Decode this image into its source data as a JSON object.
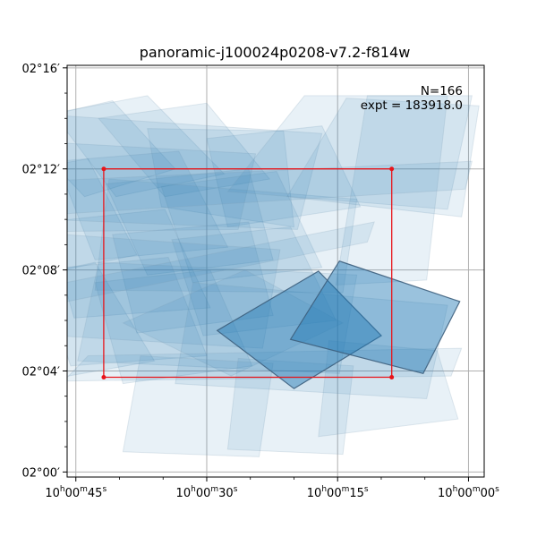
{
  "chart_data": {
    "type": "footprint-map",
    "title": "panoramic-j100024p0208-v7.2-f814w",
    "annotations": [
      "N=166",
      "expt = 183918.0"
    ],
    "x_axis": {
      "quantity": "right ascension",
      "unit": "arcmin of RA",
      "range": [
        11.5,
        -0.45
      ],
      "inverted": true,
      "ticks": [
        {
          "value": 11.25,
          "label": "10h00m45s"
        },
        {
          "value": 7.5,
          "label": "10h00m30s"
        },
        {
          "value": 3.75,
          "label": "10h00m15s"
        },
        {
          "value": 0,
          "label": "10h00m00s"
        }
      ],
      "minor_ticks": [
        13.75,
        12.5,
        10,
        8.75,
        6.25,
        5,
        2.5,
        1.25,
        -1.25
      ]
    },
    "y_axis": {
      "quantity": "declination",
      "unit": "arcmin",
      "range": [
        -0.2,
        16.1
      ],
      "ticks": [
        {
          "value": 0,
          "label": "02°00′"
        },
        {
          "value": 4,
          "label": "02°04′"
        },
        {
          "value": 8,
          "label": "02°08′"
        },
        {
          "value": 12,
          "label": "02°12′"
        },
        {
          "value": 16,
          "label": "02°16′"
        }
      ],
      "minor_ticks": [
        1,
        2,
        3,
        5,
        6,
        7,
        9,
        10,
        11,
        13,
        14,
        15
      ]
    },
    "grid": true,
    "target_box": {
      "color": "#e8141a",
      "corners": [
        [
          10.45,
          12.0
        ],
        [
          2.2,
          12.0
        ],
        [
          2.2,
          3.75
        ],
        [
          10.45,
          3.75
        ]
      ]
    },
    "highlighted_exposures": [
      {
        "corners": [
          [
            7.2,
            5.6
          ],
          [
            4.3,
            7.95
          ],
          [
            2.5,
            5.4
          ],
          [
            5.0,
            3.3
          ]
        ]
      },
      {
        "corners": [
          [
            3.7,
            8.35
          ],
          [
            0.25,
            6.75
          ],
          [
            1.3,
            3.9
          ],
          [
            5.1,
            5.25
          ]
        ]
      }
    ],
    "exposure_footprints": [
      {
        "corners": [
          [
            13.0,
            13.8
          ],
          [
            10.2,
            14.7
          ],
          [
            8.4,
            12.0
          ],
          [
            11.0,
            10.9
          ]
        ]
      },
      {
        "corners": [
          [
            11.9,
            14.2
          ],
          [
            9.2,
            14.9
          ],
          [
            7.0,
            11.8
          ],
          [
            10.1,
            10.9
          ]
        ]
      },
      {
        "corners": [
          [
            10.6,
            14.0
          ],
          [
            7.5,
            14.6
          ],
          [
            5.7,
            11.6
          ],
          [
            8.7,
            10.9
          ]
        ]
      },
      {
        "corners": [
          [
            9.2,
            13.6
          ],
          [
            5.3,
            13.5
          ],
          [
            5.0,
            9.7
          ],
          [
            8.8,
            10.5
          ]
        ]
      },
      {
        "corners": [
          [
            7.5,
            13.2
          ],
          [
            4.2,
            13.7
          ],
          [
            3.1,
            10.5
          ],
          [
            6.9,
            9.7
          ]
        ]
      },
      {
        "corners": [
          [
            13.4,
            11.8
          ],
          [
            10.9,
            12.4
          ],
          [
            9.5,
            8.6
          ],
          [
            12.3,
            7.8
          ]
        ]
      },
      {
        "corners": [
          [
            11.8,
            12.3
          ],
          [
            8.3,
            12.7
          ],
          [
            6.9,
            8.9
          ],
          [
            10.7,
            8.4
          ]
        ]
      },
      {
        "corners": [
          [
            10.4,
            11.4
          ],
          [
            6.3,
            12.0
          ],
          [
            5.6,
            8.4
          ],
          [
            9.2,
            7.8
          ]
        ]
      },
      {
        "corners": [
          [
            8.8,
            11.3
          ],
          [
            5.5,
            11.9
          ],
          [
            4.2,
            8.1
          ],
          [
            7.9,
            7.5
          ]
        ]
      },
      {
        "corners": [
          [
            12.1,
            9.9
          ],
          [
            8.7,
            10.4
          ],
          [
            7.4,
            6.5
          ],
          [
            11.3,
            6.1
          ]
        ]
      },
      {
        "corners": [
          [
            10.2,
            9.4
          ],
          [
            6.3,
            9.9
          ],
          [
            5.6,
            6.2
          ],
          [
            9.5,
            5.5
          ]
        ]
      },
      {
        "corners": [
          [
            8.5,
            9.2
          ],
          [
            5.1,
            9.7
          ],
          [
            3.8,
            6.0
          ],
          [
            7.6,
            5.4
          ]
        ]
      },
      {
        "corners": [
          [
            13.8,
            7.4
          ],
          [
            10.7,
            8.3
          ],
          [
            9.0,
            4.4
          ],
          [
            12.3,
            3.6
          ]
        ]
      },
      {
        "corners": [
          [
            12.3,
            8.0
          ],
          [
            8.6,
            8.5
          ],
          [
            7.5,
            4.6
          ],
          [
            11.4,
            4.2
          ]
        ]
      },
      {
        "corners": [
          [
            10.7,
            7.5
          ],
          [
            7.4,
            8.0
          ],
          [
            6.2,
            4.2
          ],
          [
            9.9,
            3.5
          ]
        ]
      },
      {
        "corners": [
          [
            13.2,
            9.5
          ],
          [
            12.6,
            13.1
          ],
          [
            6.1,
            12.6
          ],
          [
            6.6,
            9.6
          ]
        ]
      },
      {
        "corners": [
          [
            12.2,
            10.0
          ],
          [
            11.6,
            14.1
          ],
          [
            4.2,
            13.4
          ],
          [
            4.9,
            9.6
          ]
        ]
      },
      {
        "corners": [
          [
            10.7,
            7.2
          ],
          [
            10.3,
            11.6
          ],
          [
            3.2,
            10.8
          ],
          [
            3.6,
            7.1
          ]
        ]
      },
      {
        "corners": [
          [
            13.1,
            5.5
          ],
          [
            12.6,
            9.5
          ],
          [
            5.4,
            8.8
          ],
          [
            5.9,
            4.9
          ]
        ]
      },
      {
        "corners": [
          [
            11.2,
            4.4
          ],
          [
            10.6,
            8.3
          ],
          [
            3.2,
            7.8
          ],
          [
            3.7,
            3.9
          ]
        ]
      },
      {
        "corners": [
          [
            8.4,
            3.5
          ],
          [
            7.9,
            7.5
          ],
          [
            0.6,
            6.6
          ],
          [
            1.2,
            2.9
          ]
        ]
      },
      {
        "corners": [
          [
            6.9,
            11.1
          ],
          [
            4.7,
            14.9
          ],
          [
            -0.1,
            14.9
          ],
          [
            0.6,
            10.4
          ]
        ]
      },
      {
        "corners": [
          [
            5.2,
            10.9
          ],
          [
            3.5,
            14.8
          ],
          [
            -0.3,
            14.5
          ],
          [
            0.2,
            10.1
          ]
        ]
      },
      {
        "corners": [
          [
            3.8,
            7.4
          ],
          [
            2.9,
            14.9
          ],
          [
            0.6,
            14.9
          ],
          [
            1.2,
            7.6
          ]
        ]
      },
      {
        "corners": [
          [
            9.9,
            5.9
          ],
          [
            6.4,
            8.0
          ],
          [
            3.6,
            5.9
          ],
          [
            6.8,
            3.8
          ]
        ]
      },
      {
        "corners": [
          [
            11.6,
            3.6
          ],
          [
            10.9,
            4.6
          ],
          [
            0.2,
            4.9
          ],
          [
            0.5,
            3.8
          ]
        ]
      },
      {
        "corners": [
          [
            9.9,
            0.8
          ],
          [
            9.4,
            4.6
          ],
          [
            5.6,
            4.3
          ],
          [
            6.0,
            0.6
          ]
        ]
      },
      {
        "corners": [
          [
            6.9,
            0.9
          ],
          [
            6.6,
            4.5
          ],
          [
            3.3,
            4.2
          ],
          [
            3.6,
            0.7
          ]
        ]
      },
      {
        "corners": [
          [
            4.3,
            1.4
          ],
          [
            4.0,
            5.2
          ],
          [
            0.9,
            4.8
          ],
          [
            0.3,
            2.1
          ]
        ]
      },
      {
        "corners": [
          [
            13.0,
            10.1
          ],
          [
            12.4,
            11.5
          ],
          [
            -0.1,
            12.3
          ],
          [
            0.1,
            11.2
          ]
        ]
      },
      {
        "corners": [
          [
            12.4,
            6.5
          ],
          [
            11.9,
            7.4
          ],
          [
            2.7,
            9.9
          ],
          [
            2.9,
            9.1
          ]
        ]
      }
    ]
  }
}
